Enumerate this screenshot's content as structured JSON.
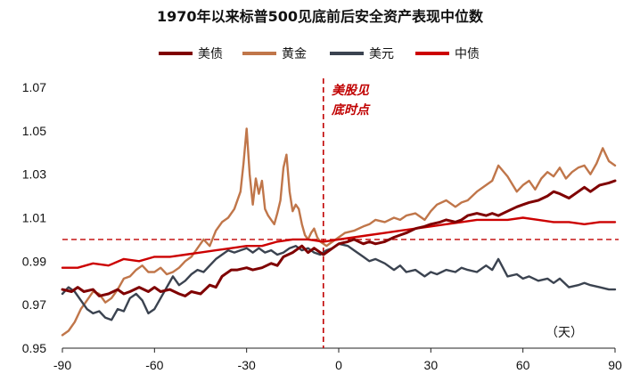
{
  "chart_data": {
    "type": "line",
    "title": "1970年以来标普500见底前后安全资产表现中位数",
    "xlabel": "",
    "ylabel": "",
    "x_unit_label": "（天）",
    "xlim": [
      -90,
      90
    ],
    "ylim": [
      0.95,
      1.07
    ],
    "x_ticks": [
      -90,
      -60,
      -30,
      0,
      30,
      60,
      90
    ],
    "y_ticks": [
      0.95,
      0.97,
      0.99,
      1.01,
      1.03,
      1.05,
      1.07
    ],
    "y_tick_labels": [
      "0.95",
      "0.97",
      "0.99",
      "1.01",
      "1.03",
      "1.05",
      "1.07"
    ],
    "legend_position": "top",
    "grid": false,
    "annotation": {
      "line1": "美股见",
      "line2": "底时点",
      "x": -5
    },
    "reference_lines": {
      "vertical_x": -5,
      "horizontal_y": 1.0
    },
    "series": [
      {
        "name": "美债",
        "color": "#7f0000",
        "x": [
          -90,
          -87,
          -85,
          -83,
          -80,
          -78,
          -75,
          -72,
          -70,
          -68,
          -65,
          -62,
          -60,
          -58,
          -55,
          -52,
          -50,
          -48,
          -45,
          -42,
          -40,
          -38,
          -35,
          -33,
          -30,
          -28,
          -25,
          -22,
          -20,
          -18,
          -15,
          -12,
          -10,
          -8,
          -5,
          -2,
          0,
          3,
          5,
          8,
          10,
          12,
          15,
          18,
          20,
          22,
          25,
          28,
          30,
          33,
          35,
          38,
          40,
          42,
          45,
          48,
          50,
          52,
          55,
          58,
          60,
          62,
          65,
          68,
          70,
          72,
          75,
          78,
          80,
          82,
          85,
          88,
          90
        ],
        "values": [
          0.977,
          0.976,
          0.978,
          0.976,
          0.977,
          0.974,
          0.975,
          0.977,
          0.975,
          0.976,
          0.978,
          0.976,
          0.978,
          0.976,
          0.977,
          0.975,
          0.974,
          0.976,
          0.975,
          0.979,
          0.978,
          0.983,
          0.986,
          0.986,
          0.987,
          0.986,
          0.987,
          0.989,
          0.988,
          0.992,
          0.994,
          0.997,
          0.994,
          0.996,
          0.993,
          0.996,
          0.998,
          0.999,
          1.0,
          0.998,
          0.999,
          0.998,
          0.999,
          1.001,
          1.002,
          1.003,
          1.005,
          1.006,
          1.007,
          1.008,
          1.009,
          1.008,
          1.009,
          1.011,
          1.012,
          1.011,
          1.012,
          1.011,
          1.013,
          1.015,
          1.016,
          1.017,
          1.018,
          1.02,
          1.022,
          1.021,
          1.019,
          1.022,
          1.024,
          1.022,
          1.025,
          1.026,
          1.027
        ]
      },
      {
        "name": "黄金",
        "color": "#c0764a",
        "x": [
          -90,
          -88,
          -86,
          -84,
          -82,
          -80,
          -78,
          -76,
          -74,
          -72,
          -70,
          -68,
          -66,
          -64,
          -62,
          -60,
          -58,
          -56,
          -54,
          -52,
          -50,
          -48,
          -46,
          -44,
          -42,
          -40,
          -38,
          -36,
          -34,
          -32,
          -31,
          -30,
          -29,
          -28,
          -27,
          -26,
          -25,
          -24,
          -23,
          -22,
          -21,
          -20,
          -19,
          -18,
          -17,
          -16,
          -15,
          -14,
          -13,
          -12,
          -11,
          -10,
          -9,
          -8,
          -7,
          -6,
          -5,
          -4,
          -3,
          -2,
          0,
          2,
          5,
          8,
          10,
          12,
          15,
          18,
          20,
          22,
          25,
          28,
          30,
          32,
          35,
          38,
          40,
          42,
          45,
          48,
          50,
          52,
          55,
          58,
          60,
          62,
          64,
          66,
          68,
          70,
          72,
          74,
          76,
          78,
          80,
          82,
          84,
          86,
          88,
          90
        ],
        "values": [
          0.956,
          0.958,
          0.962,
          0.968,
          0.972,
          0.976,
          0.975,
          0.971,
          0.973,
          0.977,
          0.982,
          0.983,
          0.986,
          0.988,
          0.985,
          0.985,
          0.987,
          0.984,
          0.985,
          0.987,
          0.99,
          0.992,
          0.996,
          1.0,
          0.997,
          1.004,
          1.008,
          1.01,
          1.014,
          1.022,
          1.035,
          1.051,
          1.03,
          1.016,
          1.028,
          1.021,
          1.027,
          1.014,
          1.011,
          1.009,
          1.007,
          1.012,
          1.018,
          1.033,
          1.039,
          1.022,
          1.013,
          1.016,
          1.014,
          1.007,
          1.002,
          1.0,
          1.003,
          1.005,
          1.001,
          0.999,
          0.998,
          0.997,
          0.998,
          0.999,
          1.001,
          1.003,
          1.004,
          1.006,
          1.007,
          1.009,
          1.008,
          1.01,
          1.009,
          1.011,
          1.012,
          1.009,
          1.013,
          1.016,
          1.018,
          1.015,
          1.017,
          1.018,
          1.022,
          1.025,
          1.027,
          1.034,
          1.029,
          1.022,
          1.025,
          1.027,
          1.023,
          1.028,
          1.031,
          1.029,
          1.033,
          1.028,
          1.031,
          1.033,
          1.034,
          1.03,
          1.035,
          1.042,
          1.036,
          1.034
        ]
      },
      {
        "name": "美元",
        "color": "#3b4350",
        "x": [
          -90,
          -88,
          -86,
          -84,
          -82,
          -80,
          -78,
          -76,
          -74,
          -72,
          -70,
          -68,
          -66,
          -64,
          -62,
          -60,
          -58,
          -56,
          -54,
          -52,
          -50,
          -48,
          -46,
          -44,
          -42,
          -40,
          -38,
          -36,
          -34,
          -32,
          -30,
          -28,
          -26,
          -24,
          -22,
          -20,
          -18,
          -16,
          -14,
          -12,
          -10,
          -8,
          -6,
          -4,
          -2,
          0,
          3,
          5,
          8,
          10,
          12,
          15,
          18,
          20,
          22,
          25,
          28,
          30,
          32,
          35,
          38,
          40,
          42,
          45,
          48,
          50,
          52,
          55,
          58,
          60,
          62,
          65,
          68,
          70,
          72,
          75,
          78,
          80,
          82,
          85,
          88,
          90
        ],
        "values": [
          0.975,
          0.978,
          0.976,
          0.972,
          0.968,
          0.966,
          0.967,
          0.964,
          0.963,
          0.968,
          0.967,
          0.973,
          0.975,
          0.972,
          0.966,
          0.968,
          0.973,
          0.978,
          0.983,
          0.979,
          0.981,
          0.984,
          0.986,
          0.985,
          0.988,
          0.991,
          0.993,
          0.995,
          0.994,
          0.995,
          0.996,
          0.994,
          0.996,
          0.994,
          0.995,
          0.993,
          0.994,
          0.996,
          0.997,
          0.995,
          0.996,
          0.994,
          0.993,
          0.995,
          0.996,
          0.998,
          0.997,
          0.995,
          0.992,
          0.99,
          0.991,
          0.989,
          0.986,
          0.988,
          0.985,
          0.986,
          0.983,
          0.985,
          0.984,
          0.986,
          0.985,
          0.987,
          0.986,
          0.985,
          0.988,
          0.986,
          0.991,
          0.983,
          0.984,
          0.982,
          0.983,
          0.981,
          0.982,
          0.98,
          0.982,
          0.978,
          0.979,
          0.98,
          0.979,
          0.978,
          0.977,
          0.977
        ]
      },
      {
        "name": "中债",
        "color": "#cc0000",
        "x": [
          -90,
          -85,
          -80,
          -75,
          -70,
          -65,
          -60,
          -55,
          -50,
          -45,
          -40,
          -35,
          -30,
          -25,
          -20,
          -15,
          -10,
          -5,
          0,
          5,
          10,
          15,
          20,
          25,
          30,
          35,
          40,
          45,
          50,
          55,
          60,
          65,
          70,
          75,
          80,
          85,
          90
        ],
        "values": [
          0.987,
          0.987,
          0.989,
          0.988,
          0.991,
          0.99,
          0.992,
          0.992,
          0.993,
          0.994,
          0.995,
          0.996,
          0.997,
          0.997,
          0.999,
          1.0,
          1.0,
          0.999,
          1.0,
          1.001,
          1.002,
          1.003,
          1.004,
          1.005,
          1.006,
          1.007,
          1.008,
          1.009,
          1.009,
          1.009,
          1.01,
          1.009,
          1.008,
          1.008,
          1.007,
          1.008,
          1.008
        ]
      }
    ]
  }
}
